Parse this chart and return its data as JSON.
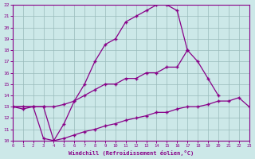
{
  "xlabel": "Windchill (Refroidissement éolien,°C)",
  "bg_color": "#cce8e8",
  "line_color": "#880088",
  "grid_color": "#99bbbb",
  "xlim": [
    0,
    23
  ],
  "ylim": [
    10,
    22
  ],
  "xticks": [
    0,
    1,
    2,
    3,
    4,
    5,
    6,
    7,
    8,
    9,
    10,
    11,
    12,
    13,
    14,
    15,
    16,
    17,
    18,
    19,
    20,
    21,
    22,
    23
  ],
  "yticks": [
    10,
    11,
    12,
    13,
    14,
    15,
    16,
    17,
    18,
    19,
    20,
    21,
    22
  ],
  "curve_top_x": [
    0,
    1,
    2,
    3,
    4,
    5,
    6,
    7,
    8,
    9,
    10,
    11,
    12,
    13,
    14,
    15,
    16,
    17
  ],
  "curve_top_y": [
    13.0,
    12.8,
    13.0,
    10.2,
    10.0,
    11.5,
    13.5,
    15.0,
    17.0,
    18.5,
    19.0,
    20.5,
    21.0,
    21.5,
    22.0,
    22.0,
    21.5,
    18.0
  ],
  "curve_mid_x": [
    0,
    1,
    2,
    3,
    4,
    5,
    6,
    7,
    8,
    9,
    10,
    11,
    12,
    13,
    14,
    15,
    16,
    17,
    18,
    19,
    20
  ],
  "curve_mid_y": [
    13.0,
    13.0,
    13.0,
    13.0,
    13.0,
    13.2,
    13.5,
    14.0,
    14.5,
    15.0,
    15.0,
    15.5,
    15.5,
    16.0,
    16.0,
    16.5,
    16.5,
    18.0,
    17.0,
    15.5,
    14.0
  ],
  "curve_bot_x": [
    0,
    3,
    4,
    5,
    6,
    7,
    8,
    9,
    10,
    11,
    12,
    13,
    14,
    15,
    16,
    17,
    18,
    19,
    20,
    21,
    22,
    23
  ],
  "curve_bot_y": [
    13.0,
    13.0,
    10.0,
    10.2,
    10.5,
    10.8,
    11.0,
    11.3,
    11.5,
    11.8,
    12.0,
    12.2,
    12.5,
    12.5,
    12.8,
    13.0,
    13.0,
    13.2,
    13.5,
    13.5,
    13.8,
    13.0
  ]
}
